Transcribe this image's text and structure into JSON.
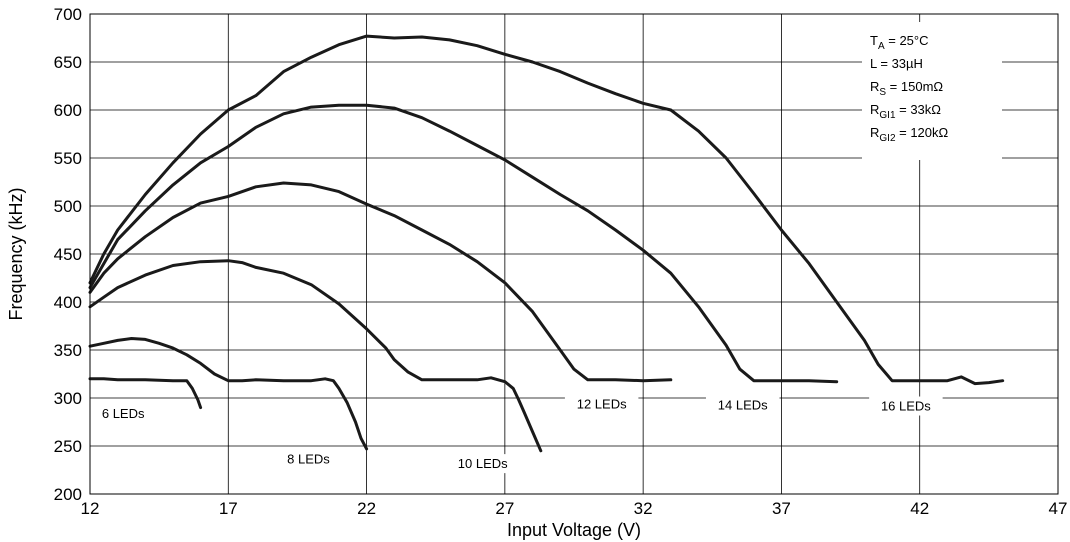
{
  "chart_data": {
    "type": "line",
    "xlabel": "Input Voltage (V)",
    "ylabel": "Frequency (kHz)",
    "xlim": [
      12,
      47
    ],
    "ylim": [
      200,
      700
    ],
    "xticks": [
      12,
      17,
      22,
      27,
      32,
      37,
      42,
      47
    ],
    "yticks": [
      200,
      250,
      300,
      350,
      400,
      450,
      500,
      550,
      600,
      650,
      700
    ],
    "grid": true,
    "line_color": "#1a1a1a",
    "conditions": [
      {
        "main": "T",
        "sub": "A",
        "rest": " = 25°C"
      },
      {
        "main": "L = 33µH",
        "sub": "",
        "rest": ""
      },
      {
        "main": "R",
        "sub": "S",
        "rest": " = 150mΩ"
      },
      {
        "main": "R",
        "sub": "GI1",
        "rest": " = 33kΩ"
      },
      {
        "main": "R",
        "sub": "GI2",
        "rest": " = 120kΩ"
      }
    ],
    "series": [
      {
        "name": "6 LEDs",
        "label_at": [
          13.2,
          280
        ],
        "points": [
          [
            12,
            320
          ],
          [
            12.5,
            320
          ],
          [
            13,
            319
          ],
          [
            14,
            319
          ],
          [
            15,
            318
          ],
          [
            15.5,
            318
          ],
          [
            15.7,
            310
          ],
          [
            15.9,
            298
          ],
          [
            16,
            290
          ]
        ]
      },
      {
        "name": "8 LEDs",
        "label_at": [
          19.9,
          233
        ],
        "points": [
          [
            12,
            354
          ],
          [
            12.5,
            357
          ],
          [
            13,
            360
          ],
          [
            13.5,
            362
          ],
          [
            14,
            361
          ],
          [
            14.5,
            357
          ],
          [
            15,
            352
          ],
          [
            15.5,
            345
          ],
          [
            16,
            336
          ],
          [
            16.5,
            325
          ],
          [
            17,
            318
          ],
          [
            17.5,
            318
          ],
          [
            18,
            319
          ],
          [
            19,
            318
          ],
          [
            20,
            318
          ],
          [
            20.5,
            320
          ],
          [
            20.8,
            318
          ],
          [
            21,
            310
          ],
          [
            21.3,
            295
          ],
          [
            21.6,
            275
          ],
          [
            21.8,
            258
          ],
          [
            22,
            247
          ]
        ]
      },
      {
        "name": "10 LEDs",
        "label_at": [
          26.2,
          228
        ],
        "points": [
          [
            12,
            395
          ],
          [
            12.5,
            405
          ],
          [
            13,
            415
          ],
          [
            14,
            428
          ],
          [
            15,
            438
          ],
          [
            16,
            442
          ],
          [
            17,
            443
          ],
          [
            17.5,
            441
          ],
          [
            18,
            436
          ],
          [
            19,
            430
          ],
          [
            20,
            418
          ],
          [
            21,
            398
          ],
          [
            22,
            372
          ],
          [
            22.7,
            352
          ],
          [
            23,
            340
          ],
          [
            23.5,
            327
          ],
          [
            24,
            319
          ],
          [
            25,
            319
          ],
          [
            26,
            319
          ],
          [
            26.5,
            321
          ],
          [
            27,
            317
          ],
          [
            27.3,
            310
          ],
          [
            27.5,
            298
          ],
          [
            27.7,
            285
          ],
          [
            28,
            265
          ],
          [
            28.3,
            245
          ]
        ]
      },
      {
        "name": "12 LEDs",
        "label_at": [
          30.5,
          290
        ],
        "points": [
          [
            12,
            410
          ],
          [
            12.5,
            430
          ],
          [
            13,
            445
          ],
          [
            14,
            468
          ],
          [
            15,
            488
          ],
          [
            16,
            503
          ],
          [
            17,
            510
          ],
          [
            18,
            520
          ],
          [
            19,
            524
          ],
          [
            20,
            522
          ],
          [
            21,
            515
          ],
          [
            22,
            502
          ],
          [
            23,
            490
          ],
          [
            24,
            475
          ],
          [
            25,
            460
          ],
          [
            26,
            442
          ],
          [
            27,
            420
          ],
          [
            28,
            390
          ],
          [
            29,
            350
          ],
          [
            29.5,
            330
          ],
          [
            30,
            319
          ],
          [
            31,
            319
          ],
          [
            32,
            318
          ],
          [
            33,
            319
          ]
        ]
      },
      {
        "name": "14 LEDs",
        "label_at": [
          35.6,
          289
        ],
        "points": [
          [
            12,
            415
          ],
          [
            12.5,
            440
          ],
          [
            13,
            465
          ],
          [
            14,
            495
          ],
          [
            15,
            522
          ],
          [
            16,
            545
          ],
          [
            17,
            562
          ],
          [
            18,
            582
          ],
          [
            19,
            596
          ],
          [
            20,
            603
          ],
          [
            21,
            605
          ],
          [
            22,
            605
          ],
          [
            23,
            602
          ],
          [
            24,
            592
          ],
          [
            25,
            578
          ],
          [
            26,
            563
          ],
          [
            27,
            548
          ],
          [
            28,
            530
          ],
          [
            29,
            512
          ],
          [
            30,
            495
          ],
          [
            31,
            475
          ],
          [
            32,
            454
          ],
          [
            33,
            430
          ],
          [
            34,
            395
          ],
          [
            35,
            355
          ],
          [
            35.5,
            330
          ],
          [
            36,
            318
          ],
          [
            37,
            318
          ],
          [
            38,
            318
          ],
          [
            39,
            317
          ]
        ]
      },
      {
        "name": "16 LEDs",
        "label_at": [
          41.5,
          288
        ],
        "points": [
          [
            12,
            420
          ],
          [
            12.5,
            450
          ],
          [
            13,
            475
          ],
          [
            14,
            512
          ],
          [
            15,
            545
          ],
          [
            16,
            575
          ],
          [
            17,
            600
          ],
          [
            18,
            615
          ],
          [
            19,
            640
          ],
          [
            20,
            655
          ],
          [
            21,
            668
          ],
          [
            22,
            677
          ],
          [
            23,
            675
          ],
          [
            24,
            676
          ],
          [
            25,
            673
          ],
          [
            26,
            667
          ],
          [
            27,
            658
          ],
          [
            28,
            650
          ],
          [
            29,
            640
          ],
          [
            30,
            628
          ],
          [
            31,
            617
          ],
          [
            32,
            607
          ],
          [
            33,
            600
          ],
          [
            34,
            578
          ],
          [
            35,
            550
          ],
          [
            36,
            513
          ],
          [
            37,
            475
          ],
          [
            38,
            440
          ],
          [
            39,
            400
          ],
          [
            40,
            360
          ],
          [
            40.5,
            335
          ],
          [
            41,
            318
          ],
          [
            42,
            318
          ],
          [
            43,
            318
          ],
          [
            43.5,
            322
          ],
          [
            44,
            315
          ],
          [
            44.5,
            316
          ],
          [
            45,
            318
          ]
        ]
      }
    ]
  }
}
